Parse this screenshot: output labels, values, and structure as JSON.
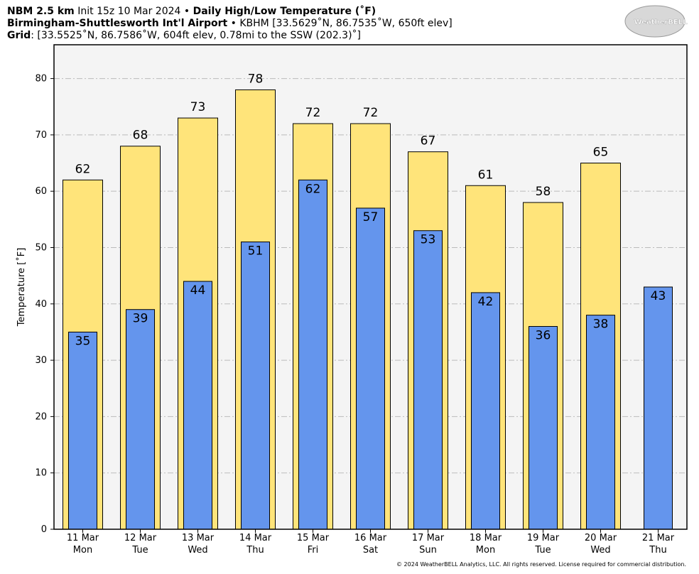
{
  "chart_data": {
    "type": "bar",
    "title_parts": [
      "NBM 2.5 km",
      "Init 15z 10 Mar 2024",
      "•",
      "Daily High/Low Temperature (˚F)"
    ],
    "subtitle_parts": [
      "Birmingham-Shuttlesworth Int'l Airport",
      "•",
      "KBHM [33.5629˚N, 86.7535˚W, 650ft elev]"
    ],
    "grid_parts": [
      "Grid",
      ": [33.5525˚N, 86.7586˚W, 604ft elev, 0.78mi to the SSW (202.3)˚]"
    ],
    "logo": "WeatherBELL",
    "footer": "© 2024 WeatherBELL Analytics, LLC. All rights reserved. License required for commercial distribution.",
    "ylabel": "Temperature [˚F]",
    "categories": [
      "11 Mar",
      "12 Mar",
      "13 Mar",
      "14 Mar",
      "15 Mar",
      "16 Mar",
      "17 Mar",
      "18 Mar",
      "19 Mar",
      "20 Mar",
      "21 Mar"
    ],
    "category_days": [
      "Mon",
      "Tue",
      "Wed",
      "Thu",
      "Fri",
      "Sat",
      "Sun",
      "Mon",
      "Tue",
      "Wed",
      "Thu"
    ],
    "series": [
      {
        "color": "#ffe47a",
        "values": [
          62,
          68,
          73,
          78,
          72,
          72,
          67,
          61,
          58,
          65,
          null
        ]
      },
      {
        "color": "#6495ed",
        "values": [
          35,
          39,
          44,
          51,
          62,
          57,
          53,
          42,
          36,
          38,
          43
        ]
      }
    ],
    "ylim": [
      0,
      86
    ],
    "yticks": [
      0,
      10,
      20,
      30,
      40,
      50,
      60,
      70,
      80
    ],
    "grid": true
  }
}
